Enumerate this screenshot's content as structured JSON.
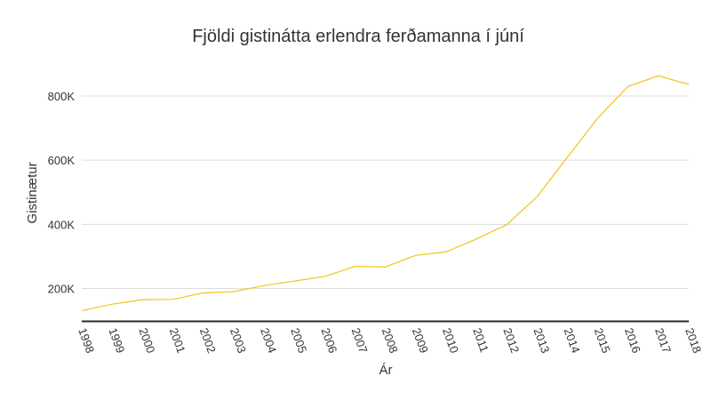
{
  "chart_data": {
    "type": "line",
    "title": "Fjöldi gistinátta erlendra ferðamanna í júní",
    "xlabel": "Ár",
    "ylabel": "Gistinætur",
    "x": [
      "1998",
      "1999",
      "2000",
      "2001",
      "2002",
      "2003",
      "2004",
      "2005",
      "2006",
      "2007",
      "2008",
      "2009",
      "2010",
      "2011",
      "2012",
      "2013",
      "2014",
      "2015",
      "2016",
      "2017",
      "2018"
    ],
    "series": [
      {
        "name": "Gistinætur",
        "color": "#f2c318",
        "values": [
          131000,
          151000,
          165000,
          166000,
          186000,
          190000,
          209000,
          223000,
          237000,
          269000,
          267000,
          303000,
          314000,
          354000,
          399000,
          486000,
          609000,
          731000,
          830000,
          863000,
          836000
        ]
      }
    ],
    "yticks": [
      200000,
      400000,
      600000,
      800000
    ],
    "ytick_labels": [
      "200K",
      "400K",
      "600K",
      "800K"
    ],
    "ylim": [
      97000,
      900000
    ],
    "grid": true,
    "legend": "none"
  }
}
